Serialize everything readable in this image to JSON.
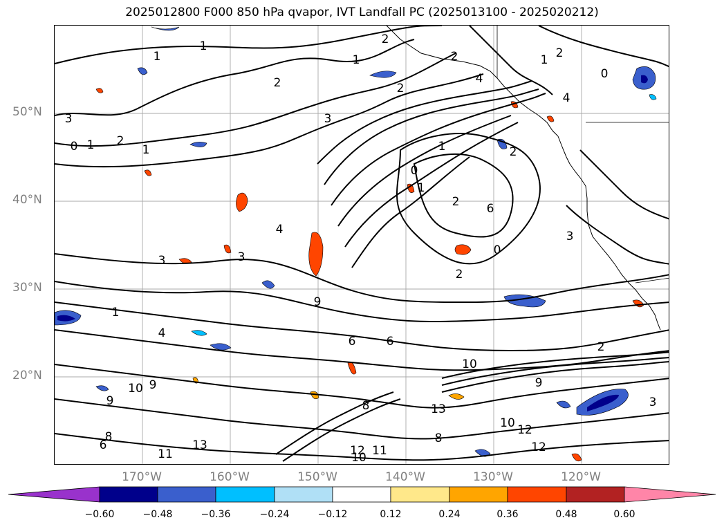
{
  "title": "2025012800 F000 850 hPa qvapor, IVT Landfall PC (2025013100 - 2025020212)",
  "map": {
    "lat_labels": [
      "50°N",
      "40°N",
      "30°N",
      "20°N"
    ],
    "lon_labels": [
      "170°W",
      "160°W",
      "150°W",
      "140°W",
      "130°W",
      "120°W"
    ],
    "gridlines": true,
    "contour_labels": [
      "1",
      "1",
      "2",
      "2",
      "2",
      "1",
      "2",
      "0",
      "4",
      "1",
      "2",
      "3",
      "3",
      "0",
      "1",
      "2",
      "1",
      "0",
      "1",
      "2",
      "4",
      "1",
      "2",
      "6",
      "0",
      "2",
      "3",
      "3",
      "4",
      "3",
      "1",
      "9",
      "4",
      "6",
      "6",
      "9",
      "10",
      "10",
      "9",
      "9",
      "6",
      "8",
      "12",
      "13",
      "10",
      "12",
      "12",
      "10",
      "11",
      "13",
      "11",
      "8",
      "8",
      "3",
      "2"
    ],
    "colorbar": {
      "ticks": [
        "−0.60",
        "−0.48",
        "−0.36",
        "−0.24",
        "−0.12",
        "0.12",
        "0.24",
        "0.36",
        "0.48",
        "0.60"
      ],
      "colors": [
        "#9932cc",
        "#00008b",
        "#3a5fcd",
        "#00bfff",
        "#b0e0f6",
        "#ffffff",
        "#ffe88a",
        "#ffa500",
        "#ff4500",
        "#b22222",
        "#ff85a8"
      ]
    }
  }
}
